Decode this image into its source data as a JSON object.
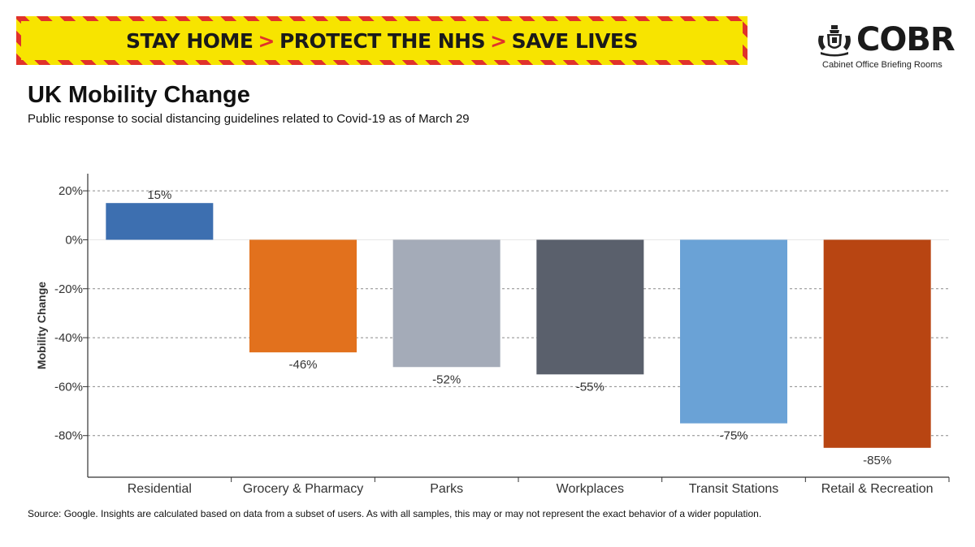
{
  "banner": {
    "parts": [
      "STAY HOME",
      "PROTECT THE NHS",
      "SAVE LIVES"
    ],
    "separator": ">"
  },
  "brand": {
    "name": "COBR",
    "subtitle": "Cabinet Office Briefing Rooms",
    "icon": "royal-crest-icon"
  },
  "header": {
    "title": "UK Mobility Change",
    "subtitle": "Public response to social distancing guidelines related to Covid-19 as of March 29"
  },
  "chart_data": {
    "type": "bar",
    "title": "UK Mobility Change",
    "subtitle": "Public response to social distancing guidelines related to Covid-19 as of March 29",
    "ylabel": "Mobility Change",
    "xlabel": "",
    "categories": [
      "Residential",
      "Grocery & Pharmacy",
      "Parks",
      "Workplaces",
      "Transit Stations",
      "Retail & Recreation"
    ],
    "values": [
      15,
      -46,
      -52,
      -55,
      -75,
      -85
    ],
    "value_labels": [
      "15%",
      "-46%",
      "-52%",
      "-55%",
      "-75%",
      "-85%"
    ],
    "colors": [
      "#3d6fb0",
      "#e2711d",
      "#a4abb8",
      "#5a606c",
      "#6aa2d6",
      "#b84512"
    ],
    "ylim": [
      -97,
      27
    ],
    "yticks": [
      20,
      0,
      -20,
      -40,
      -60,
      -80
    ],
    "ytick_labels": [
      "20%",
      "0%",
      "-20%",
      "-40%",
      "-60%",
      "-80%"
    ],
    "grid": true
  },
  "footer": {
    "source": "Source: Google. Insights are calculated based on data from a subset of users. As with all samples, this may or may not represent the exact behavior of a wider population."
  }
}
